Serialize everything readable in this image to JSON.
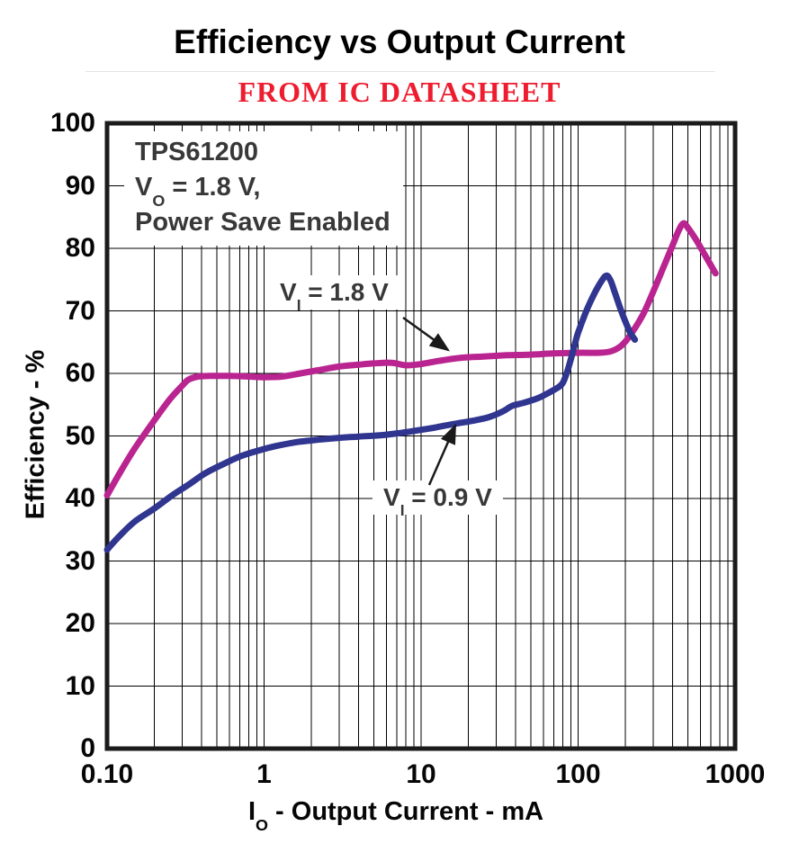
{
  "header": {
    "title": "Efficiency vs Output Current",
    "subtitle": "FROM IC DATASHEET",
    "subtitle_color": "#ed1c2e"
  },
  "chart_data": {
    "type": "line",
    "title": "Efficiency vs Output Current",
    "xlabel": "IO - Output Current - mA",
    "ylabel": "Efficiency - %",
    "x_scale": "log",
    "xlim": [
      0.1,
      1000
    ],
    "ylim": [
      0,
      100
    ],
    "grid": "full log-log style grid, thin black lines, on",
    "legend_position": "inline arrow annotations",
    "x_tick_values": [
      0.1,
      1,
      10,
      100,
      1000
    ],
    "x_tick_labels": [
      "0.10",
      "1",
      "10",
      "100",
      "1000"
    ],
    "y_tick_values": [
      0,
      10,
      20,
      30,
      40,
      50,
      60,
      70,
      80,
      90,
      100
    ],
    "y_tick_labels": [
      "0",
      "10",
      "20",
      "30",
      "40",
      "50",
      "60",
      "70",
      "80",
      "90",
      "100"
    ],
    "series": [
      {
        "name": "VI = 1.8 V",
        "color": "#ba2490",
        "points": [
          [
            0.1,
            40.5
          ],
          [
            0.12,
            44
          ],
          [
            0.15,
            48
          ],
          [
            0.2,
            52.5
          ],
          [
            0.25,
            55.8
          ],
          [
            0.3,
            58
          ],
          [
            0.33,
            59
          ],
          [
            0.38,
            59.5
          ],
          [
            0.45,
            59.6
          ],
          [
            0.6,
            59.6
          ],
          [
            0.8,
            59.5
          ],
          [
            1,
            59.4
          ],
          [
            1.3,
            59.5
          ],
          [
            1.7,
            60
          ],
          [
            2.2,
            60.5
          ],
          [
            3,
            61.1
          ],
          [
            4,
            61.4
          ],
          [
            5,
            61.6
          ],
          [
            6.5,
            61.7
          ],
          [
            8,
            61.3
          ],
          [
            10,
            61.5
          ],
          [
            13,
            62
          ],
          [
            18,
            62.5
          ],
          [
            25,
            62.7
          ],
          [
            35,
            62.9
          ],
          [
            50,
            63
          ],
          [
            70,
            63.2
          ],
          [
            100,
            63.3
          ],
          [
            130,
            63.3
          ],
          [
            160,
            63.5
          ],
          [
            190,
            64.5
          ],
          [
            220,
            66.5
          ],
          [
            260,
            69.5
          ],
          [
            300,
            73
          ],
          [
            350,
            77
          ],
          [
            400,
            80.5
          ],
          [
            440,
            83
          ],
          [
            470,
            84
          ],
          [
            500,
            83.3
          ],
          [
            560,
            81.5
          ],
          [
            640,
            79
          ],
          [
            750,
            76
          ]
        ]
      },
      {
        "name": "VI = 0.9 V",
        "color": "#303590",
        "points": [
          [
            0.1,
            31.8
          ],
          [
            0.12,
            34
          ],
          [
            0.15,
            36.3
          ],
          [
            0.2,
            38.4
          ],
          [
            0.26,
            40.5
          ],
          [
            0.33,
            42.2
          ],
          [
            0.42,
            44
          ],
          [
            0.55,
            45.5
          ],
          [
            0.7,
            46.7
          ],
          [
            0.9,
            47.6
          ],
          [
            1.2,
            48.4
          ],
          [
            1.6,
            49
          ],
          [
            2.2,
            49.4
          ],
          [
            3,
            49.7
          ],
          [
            4,
            49.9
          ],
          [
            5.5,
            50.1
          ],
          [
            7,
            50.4
          ],
          [
            9,
            50.8
          ],
          [
            12,
            51.3
          ],
          [
            16,
            51.9
          ],
          [
            21,
            52.4
          ],
          [
            27,
            53
          ],
          [
            33,
            53.9
          ],
          [
            38,
            54.8
          ],
          [
            45,
            55.3
          ],
          [
            55,
            56
          ],
          [
            65,
            56.9
          ],
          [
            75,
            57.8
          ],
          [
            80,
            58.5
          ],
          [
            85,
            60.2
          ],
          [
            90,
            62.3
          ],
          [
            95,
            64.5
          ],
          [
            100,
            66.5
          ],
          [
            110,
            69.3
          ],
          [
            120,
            71.5
          ],
          [
            135,
            74
          ],
          [
            150,
            75.6
          ],
          [
            160,
            75
          ],
          [
            170,
            73.2
          ],
          [
            185,
            70.5
          ],
          [
            200,
            68.3
          ],
          [
            215,
            66.5
          ],
          [
            230,
            65.4
          ]
        ]
      }
    ]
  },
  "annotations": {
    "device_line1": "TPS61200",
    "device_line2": {
      "pre": "V",
      "sub": "O",
      "post": " = 1.8 V,"
    },
    "device_line3": "Power Save Enabled",
    "series_label_1": {
      "pre": "V",
      "sub": "I",
      "post": " = 1.8 V"
    },
    "series_label_2": {
      "pre": "V",
      "sub": "I",
      "post": " = 0.9 V"
    }
  },
  "axis_labels": {
    "x": {
      "pre": "I",
      "sub": "O",
      "post": " - Output Current - mA"
    },
    "y": "Efficiency - %"
  }
}
